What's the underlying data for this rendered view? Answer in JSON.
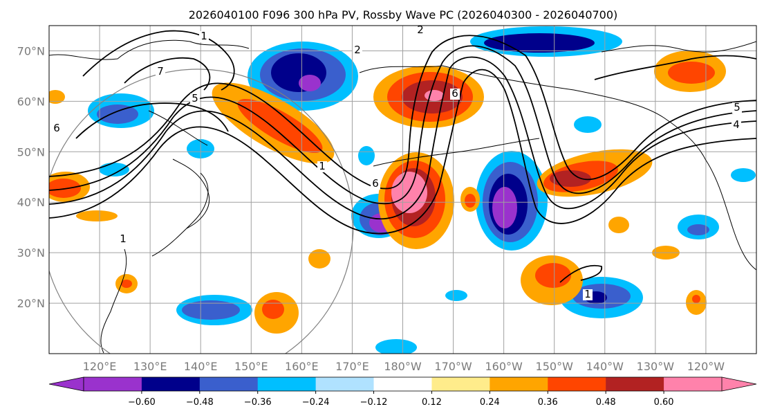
{
  "title": "2026040100 F096 300 hPa PV, Rossby Wave PC (2026040300 - 2026040700)",
  "map": {
    "projection": "PlateCarree",
    "extent_lon": [
      110,
      250
    ],
    "extent_lat": [
      10,
      75
    ],
    "lat_labels": [
      "70°N",
      "60°N",
      "50°N",
      "40°N",
      "30°N",
      "20°N"
    ],
    "lat_values": [
      70,
      60,
      50,
      40,
      30,
      20
    ],
    "lon_labels": [
      "120°E",
      "130°E",
      "140°E",
      "150°E",
      "160°E",
      "170°E",
      "180°W",
      "170°W",
      "160°W",
      "150°W",
      "140°W",
      "130°W",
      "120°W"
    ],
    "lon_values": [
      120,
      130,
      140,
      150,
      160,
      170,
      180,
      190,
      200,
      210,
      220,
      230,
      240
    ],
    "pv_contour_labels": [
      "5",
      "7",
      "2",
      "6",
      "6",
      "6",
      "1",
      "4",
      "5",
      "2",
      "1",
      "1",
      "1"
    ],
    "colors": {
      "grid": "#a0a0a0",
      "coast": "#000000",
      "contour": "#000000",
      "circle": "#808080"
    }
  },
  "colorbar": {
    "ticks": [
      "−0.60",
      "−0.48",
      "−0.36",
      "−0.24",
      "−0.12",
      "0.12",
      "0.24",
      "0.36",
      "0.48",
      "0.60"
    ],
    "colors": [
      "#9a32cd",
      "#00008b",
      "#3a5fcd",
      "#00bfff",
      "#b0e2ff",
      "#ffffff",
      "#ffec8b",
      "#ffa500",
      "#ff4500",
      "#b22222",
      "#ff82ab",
      "#ff82ab"
    ],
    "under_color": "#9a32cd",
    "over_color": "#ff82ab"
  }
}
